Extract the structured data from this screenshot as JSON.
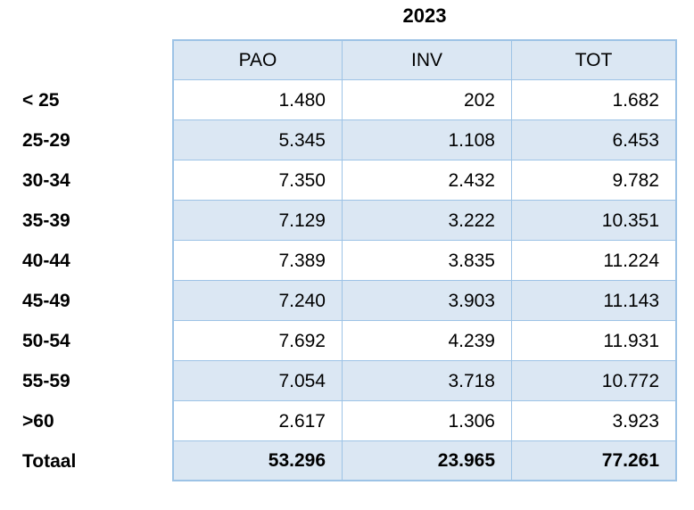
{
  "title": "2023",
  "table": {
    "columns": [
      "PAO",
      "INV",
      "TOT"
    ],
    "rows": [
      {
        "label": "< 25",
        "pao": "1.480",
        "inv": "202",
        "tot": "1.682"
      },
      {
        "label": "25-29",
        "pao": "5.345",
        "inv": "1.108",
        "tot": "6.453"
      },
      {
        "label": "30-34",
        "pao": "7.350",
        "inv": "2.432",
        "tot": "9.782"
      },
      {
        "label": "35-39",
        "pao": "7.129",
        "inv": "3.222",
        "tot": "10.351"
      },
      {
        "label": "40-44",
        "pao": "7.389",
        "inv": "3.835",
        "tot": "11.224"
      },
      {
        "label": "45-49",
        "pao": "7.240",
        "inv": "3.903",
        "tot": "11.143"
      },
      {
        "label": "50-54",
        "pao": "7.692",
        "inv": "4.239",
        "tot": "11.931"
      },
      {
        "label": "55-59",
        "pao": "7.054",
        "inv": "3.718",
        "tot": "10.772"
      },
      {
        "label": ">60",
        "pao": "2.617",
        "inv": "1.306",
        "tot": "3.923"
      },
      {
        "label": "Totaal",
        "pao": "53.296",
        "inv": "23.965",
        "tot": "77.261"
      }
    ]
  },
  "colors": {
    "row_fill": "#dbe7f3",
    "border": "#9dc3e6",
    "text": "#000000",
    "background": "#ffffff"
  },
  "chart_data": {
    "type": "table",
    "title": "2023",
    "columns": [
      "PAO",
      "INV",
      "TOT"
    ],
    "row_labels": [
      "< 25",
      "25-29",
      "30-34",
      "35-39",
      "40-44",
      "45-49",
      "50-54",
      "55-59",
      ">60",
      "Totaal"
    ],
    "series": [
      {
        "name": "PAO",
        "values": [
          1480,
          5345,
          7350,
          7129,
          7389,
          7240,
          7692,
          7054,
          2617,
          53296
        ]
      },
      {
        "name": "INV",
        "values": [
          202,
          1108,
          2432,
          3222,
          3835,
          3903,
          4239,
          3718,
          1306,
          23965
        ]
      },
      {
        "name": "TOT",
        "values": [
          1682,
          6453,
          9782,
          10351,
          11224,
          11143,
          11931,
          10772,
          3923,
          77261
        ]
      }
    ],
    "number_format": "thousands separator '.' (Dutch locale)",
    "notes": "Totaal row is the column sums; alternating white/light-blue row shading; header row shaded"
  }
}
